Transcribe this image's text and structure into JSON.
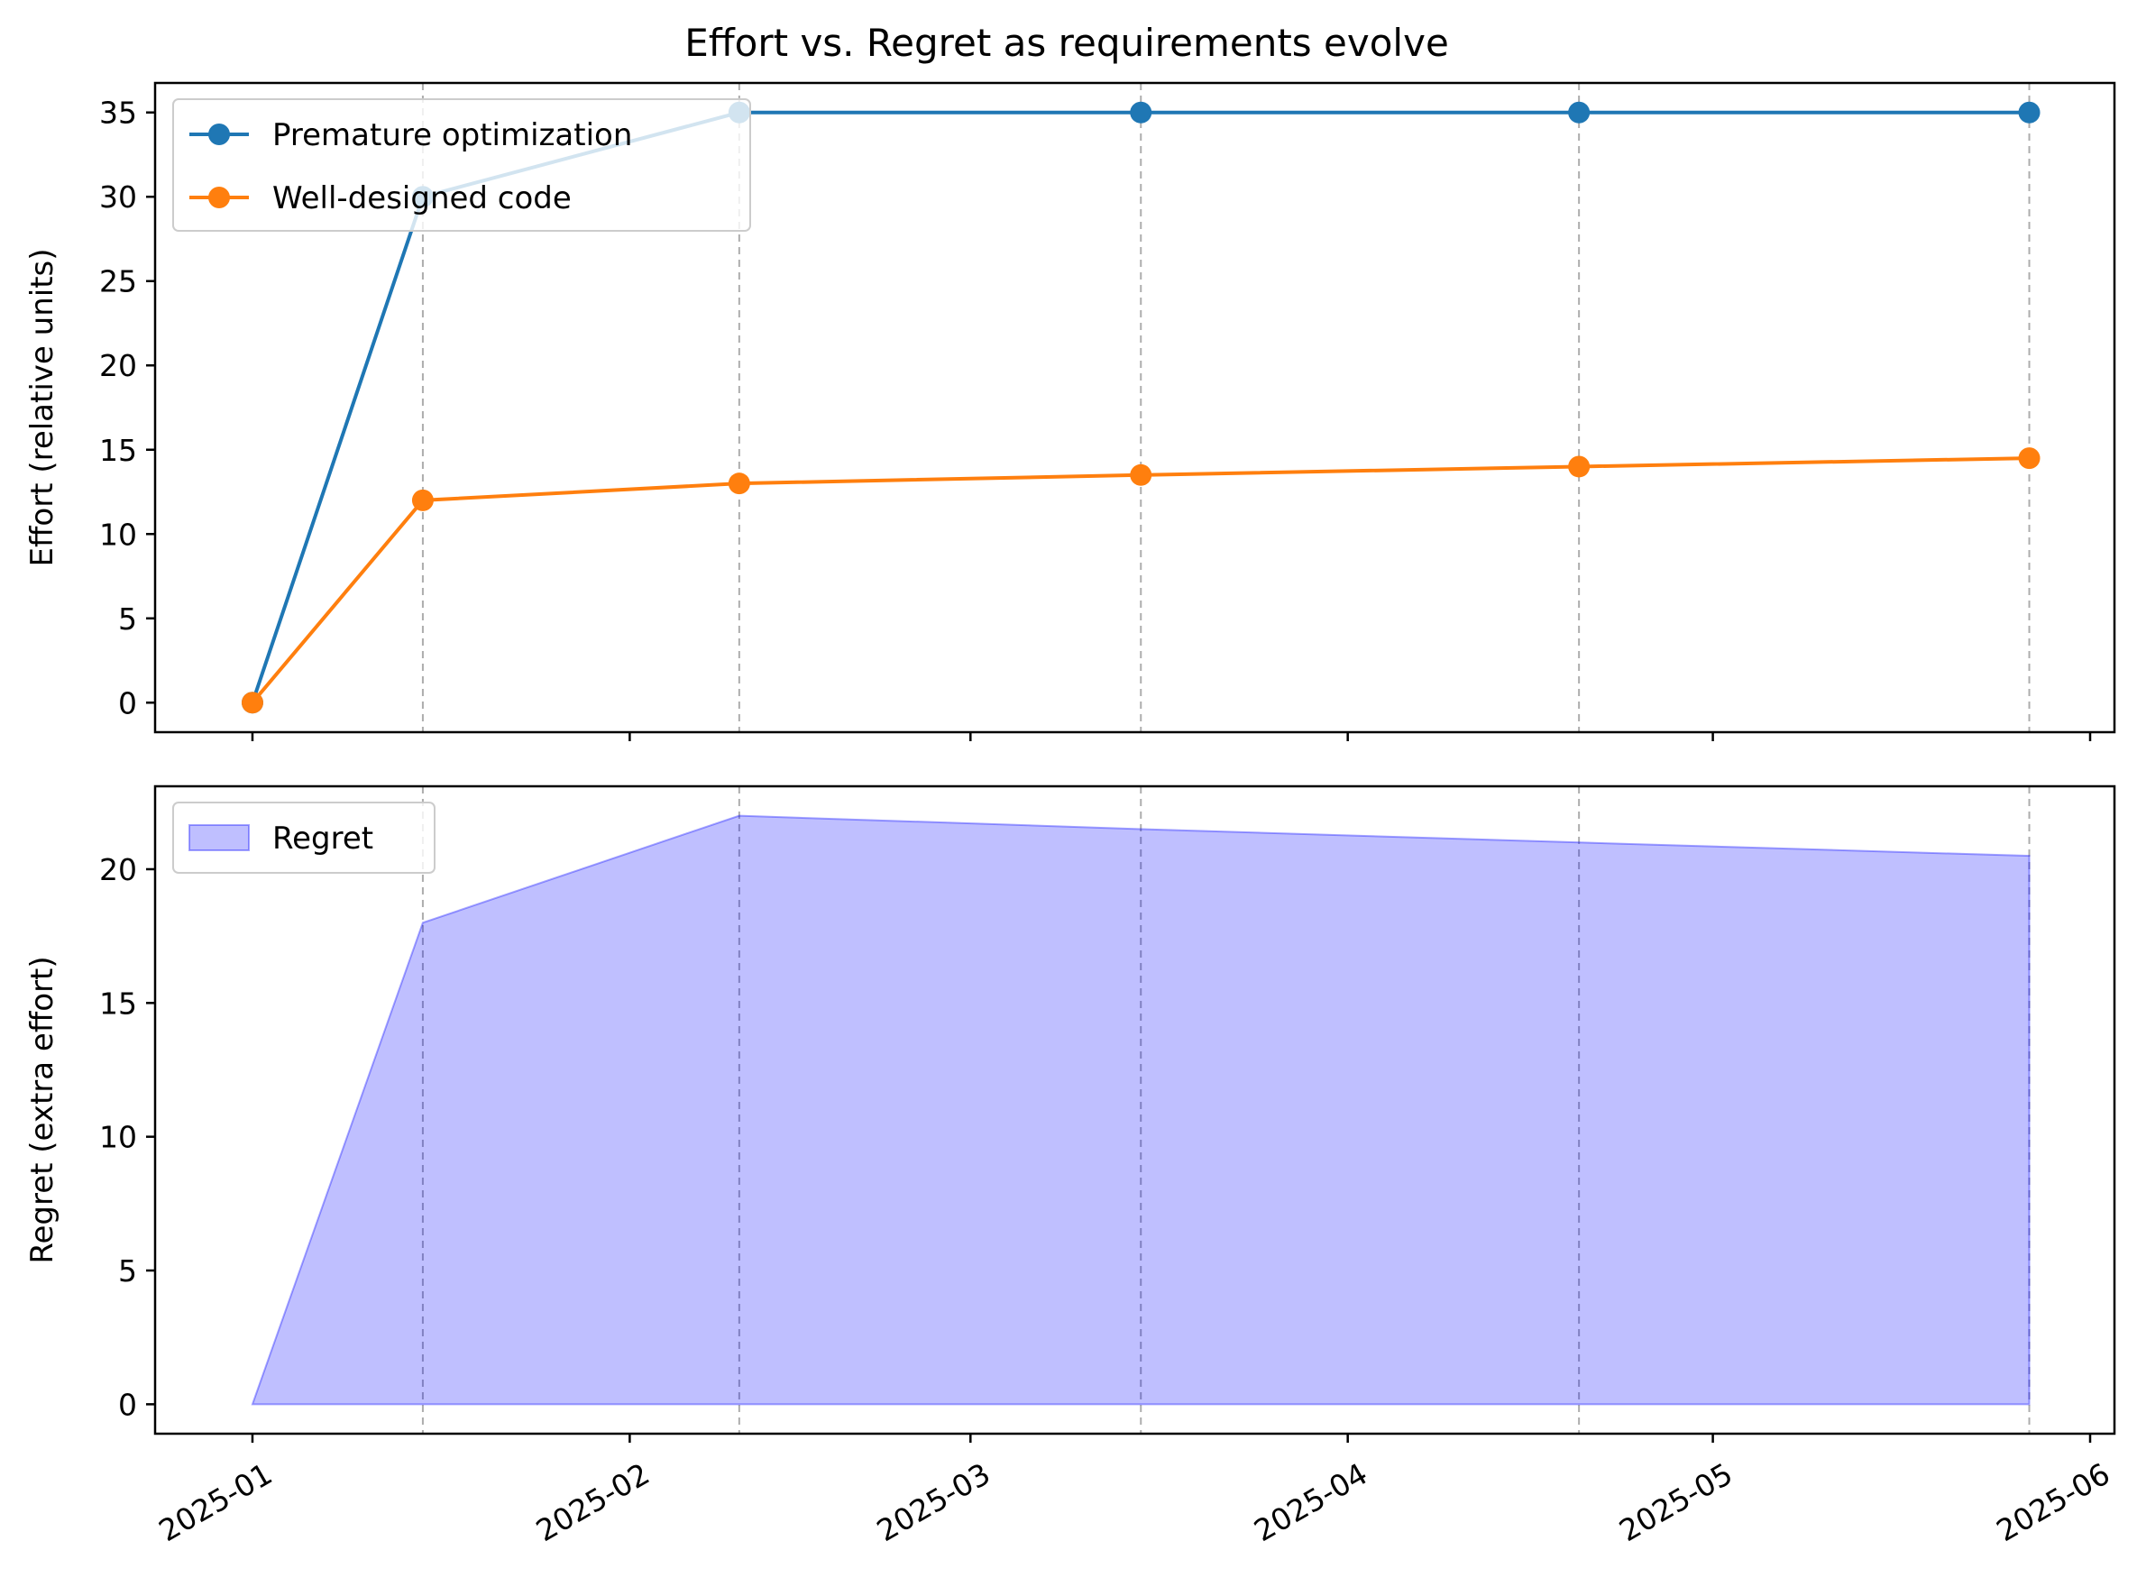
{
  "chart_data": [
    {
      "type": "line",
      "title": "Effort vs. Regret as requirements evolve",
      "xlabel": "",
      "ylabel": "Effort (relative units)",
      "x": [
        "2025-01-01",
        "2025-01-15",
        "2025-02-10",
        "2025-03-15",
        "2025-04-20",
        "2025-05-27"
      ],
      "series": [
        {
          "name": "Premature optimization",
          "values": [
            0,
            30,
            35,
            35,
            35,
            35
          ],
          "color": "#1f77b4"
        },
        {
          "name": "Well-designed code",
          "values": [
            0,
            12,
            13,
            13.5,
            14,
            14.5
          ],
          "color": "#ff7f0e"
        }
      ],
      "ylim": [
        -1.75,
        36.75
      ],
      "yticks": [
        0,
        5,
        10,
        15,
        20,
        25,
        30,
        35
      ],
      "event_lines": [
        "2025-01-15",
        "2025-02-10",
        "2025-03-15",
        "2025-04-20",
        "2025-05-27"
      ],
      "legend": "upper-left",
      "grid": false
    },
    {
      "type": "area",
      "title": "",
      "xlabel": "",
      "ylabel": "Regret (extra effort)",
      "x": [
        "2025-01-01",
        "2025-01-15",
        "2025-02-10",
        "2025-03-15",
        "2025-04-20",
        "2025-05-27"
      ],
      "series": [
        {
          "name": "Regret",
          "values": [
            0,
            18,
            22,
            21.5,
            21,
            20.5
          ],
          "color": "#0000ff",
          "opacity": 0.25
        }
      ],
      "ylim": [
        -1.1,
        23.1
      ],
      "yticks": [
        0,
        5,
        10,
        15,
        20
      ],
      "event_lines": [
        "2025-01-15",
        "2025-02-10",
        "2025-03-15",
        "2025-04-20",
        "2025-05-27"
      ],
      "legend": "upper-left",
      "grid": false
    }
  ],
  "x_axis": {
    "range": [
      "2024-12-24",
      "2025-06-03"
    ],
    "ticks": [
      "2025-01-01",
      "2025-02-01",
      "2025-03-01",
      "2025-04-01",
      "2025-05-01",
      "2025-06-01"
    ],
    "tick_labels": [
      "2025-01",
      "2025-02",
      "2025-03",
      "2025-04",
      "2025-05",
      "2025-06"
    ]
  }
}
